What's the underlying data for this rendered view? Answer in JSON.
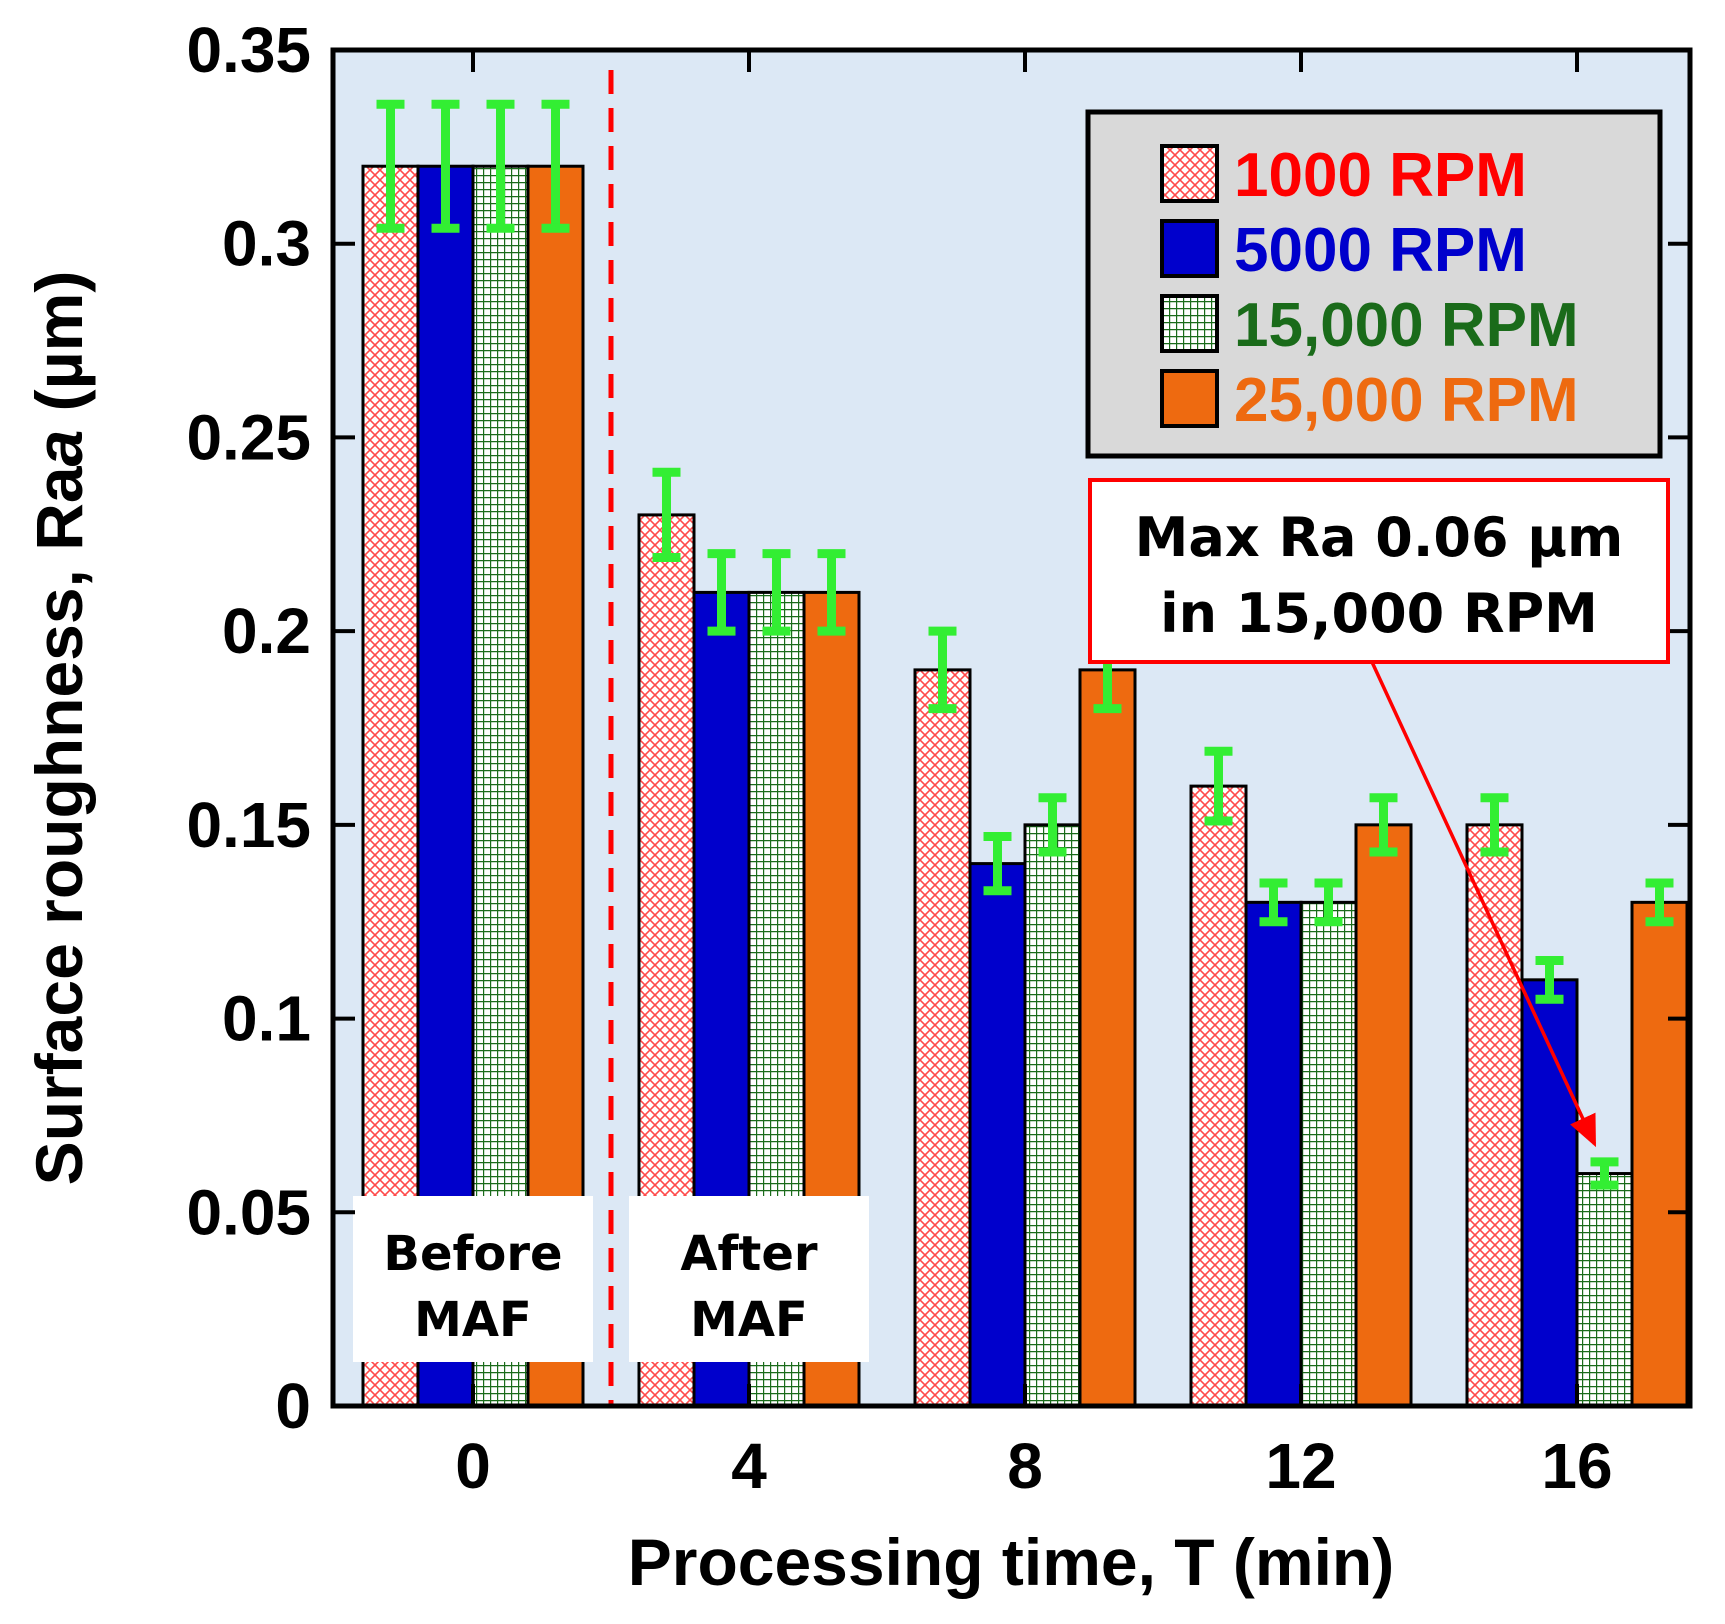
{
  "chart_data": {
    "type": "bar",
    "title": "",
    "xlabel": "Processing time, T (min)",
    "ylabel_prefix": "Surface roughness, Ra",
    "ylabel_italic": "a",
    "ylabel_suffix": " (µm)",
    "categories": [
      "0",
      "4",
      "8",
      "12",
      "16"
    ],
    "ylim": [
      0,
      0.35
    ],
    "yticks": [
      0,
      0.05,
      0.1,
      0.15,
      0.2,
      0.25,
      0.3,
      0.35
    ],
    "ytick_labels": [
      "0",
      "0.05",
      "0.1",
      "0.15",
      "0.2",
      "0.25",
      "0.3",
      "0.35"
    ],
    "background_color": "#dce8f5",
    "errorbar_color": "#33ee33",
    "series": [
      {
        "name": "1000 RPM",
        "values": [
          0.32,
          0.23,
          0.19,
          0.16,
          0.15
        ],
        "errors": [
          0.016,
          0.011,
          0.01,
          0.009,
          0.007
        ],
        "color": "#ff0000",
        "fill": "crosshatch-red",
        "legend_color": "#ff0000"
      },
      {
        "name": "5000 RPM",
        "values": [
          0.32,
          0.21,
          0.14,
          0.13,
          0.11
        ],
        "errors": [
          0.016,
          0.01,
          0.007,
          0.005,
          0.005
        ],
        "color": "#0000cc",
        "fill": "solid-blue",
        "legend_color": "#0000cc"
      },
      {
        "name": "15,000 RPM",
        "values": [
          0.32,
          0.21,
          0.15,
          0.13,
          0.06
        ],
        "errors": [
          0.016,
          0.01,
          0.007,
          0.005,
          0.003
        ],
        "color": "#1a6b1a",
        "fill": "grid-green",
        "legend_color": "#1a6b1a"
      },
      {
        "name": "25,000 RPM",
        "values": [
          0.32,
          0.21,
          0.19,
          0.15,
          0.13
        ],
        "errors": [
          0.016,
          0.01,
          0.01,
          0.007,
          0.005
        ],
        "color": "#ee6a10",
        "fill": "solid-orange",
        "legend_color": "#ee6a10"
      }
    ],
    "divider": {
      "style": "dashed",
      "color": "#ff0000",
      "between_categories": [
        "0",
        "4"
      ]
    },
    "phase_labels": [
      {
        "lines": [
          "Before",
          "MAF"
        ],
        "category": "0"
      },
      {
        "lines": [
          "After",
          "MAF"
        ],
        "category": "4"
      }
    ],
    "annotation": {
      "lines": [
        "Max Ra 0.06 µm",
        "in 15,000 RPM"
      ],
      "target_series": "15,000 RPM",
      "target_category": "16",
      "border_color": "#ff0000",
      "arrow_color": "#ff0000"
    },
    "legend": {
      "position": "top-right",
      "background": "#d9d9d9"
    }
  }
}
